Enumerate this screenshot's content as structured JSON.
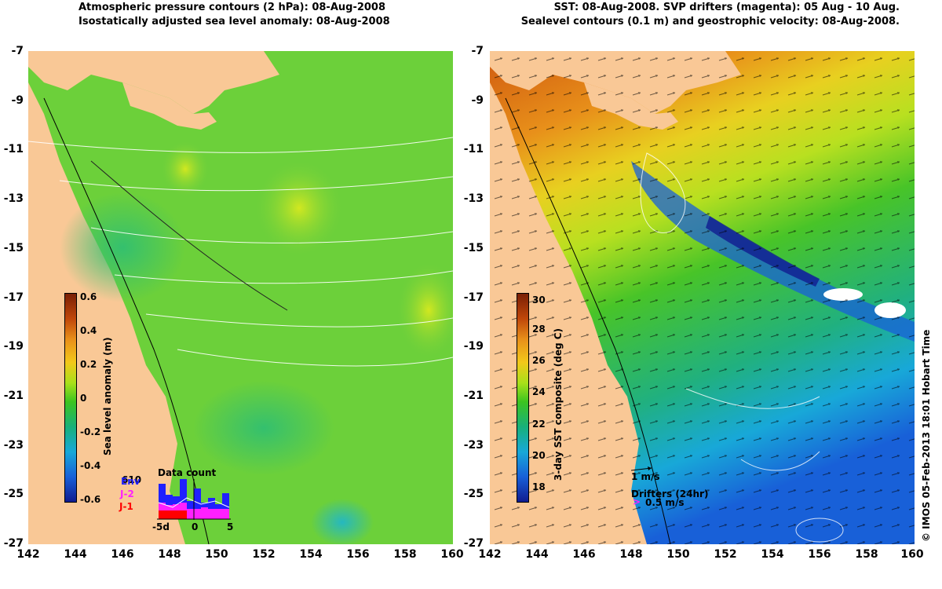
{
  "left_panel": {
    "title_line1": "Atmospheric pressure contours (2 hPa): 08-Aug-2008",
    "title_line2": "Isostatically adjusted sea level anomaly: 08-Aug-2008",
    "colorbar": {
      "title": "Sea level anomaly (m)",
      "ticks": [
        "0.6",
        "0.4",
        "0.2",
        "0",
        "-0.2",
        "-0.4",
        "-0.6"
      ],
      "colors": [
        "#7a1f05",
        "#c0470a",
        "#e8901a",
        "#f2c81a",
        "#a8e01a",
        "#3cc420",
        "#18b07a",
        "#18a8d8",
        "#1860d8",
        "#101c90"
      ]
    },
    "data_count": {
      "title": "Data count",
      "max_label": "610",
      "legend": [
        "Env",
        "J-2",
        "J-1"
      ],
      "legend_colors": [
        "#2020ff",
        "#ff20ff",
        "#ff0000"
      ],
      "x_ticks": [
        "-5d",
        "0",
        "5"
      ]
    }
  },
  "right_panel": {
    "title_line1": "SST: 08-Aug-2008. SVP drifters (magenta): 05 Aug - 10 Aug.",
    "title_line2": "Sealevel contours (0.1 m) and geostrophic velocity: 08-Aug-2008.",
    "colorbar": {
      "title": "3-day SST composite (deg C)",
      "ticks": [
        "30",
        "28",
        "26",
        "24",
        "22",
        "20",
        "18"
      ],
      "colors": [
        "#7a1f05",
        "#c0470a",
        "#e8901a",
        "#f2c81a",
        "#a8e01a",
        "#3cc420",
        "#18b07a",
        "#18a8d8",
        "#1860d8",
        "#101c90"
      ]
    },
    "velocity_legend": "1 m/s",
    "drifters_legend": "Drifters (24hr)",
    "drifters_speed": "0.5 m/s"
  },
  "axes": {
    "y_ticks": [
      "-7",
      "-9",
      "-11",
      "-13",
      "-15",
      "-17",
      "-19",
      "-21",
      "-23",
      "-25",
      "-27"
    ],
    "x_ticks": [
      "142",
      "144",
      "146",
      "148",
      "150",
      "152",
      "154",
      "156",
      "158",
      "160"
    ]
  },
  "credit": "© IMOS 05-Feb-2013 18:01 Hobart Time"
}
